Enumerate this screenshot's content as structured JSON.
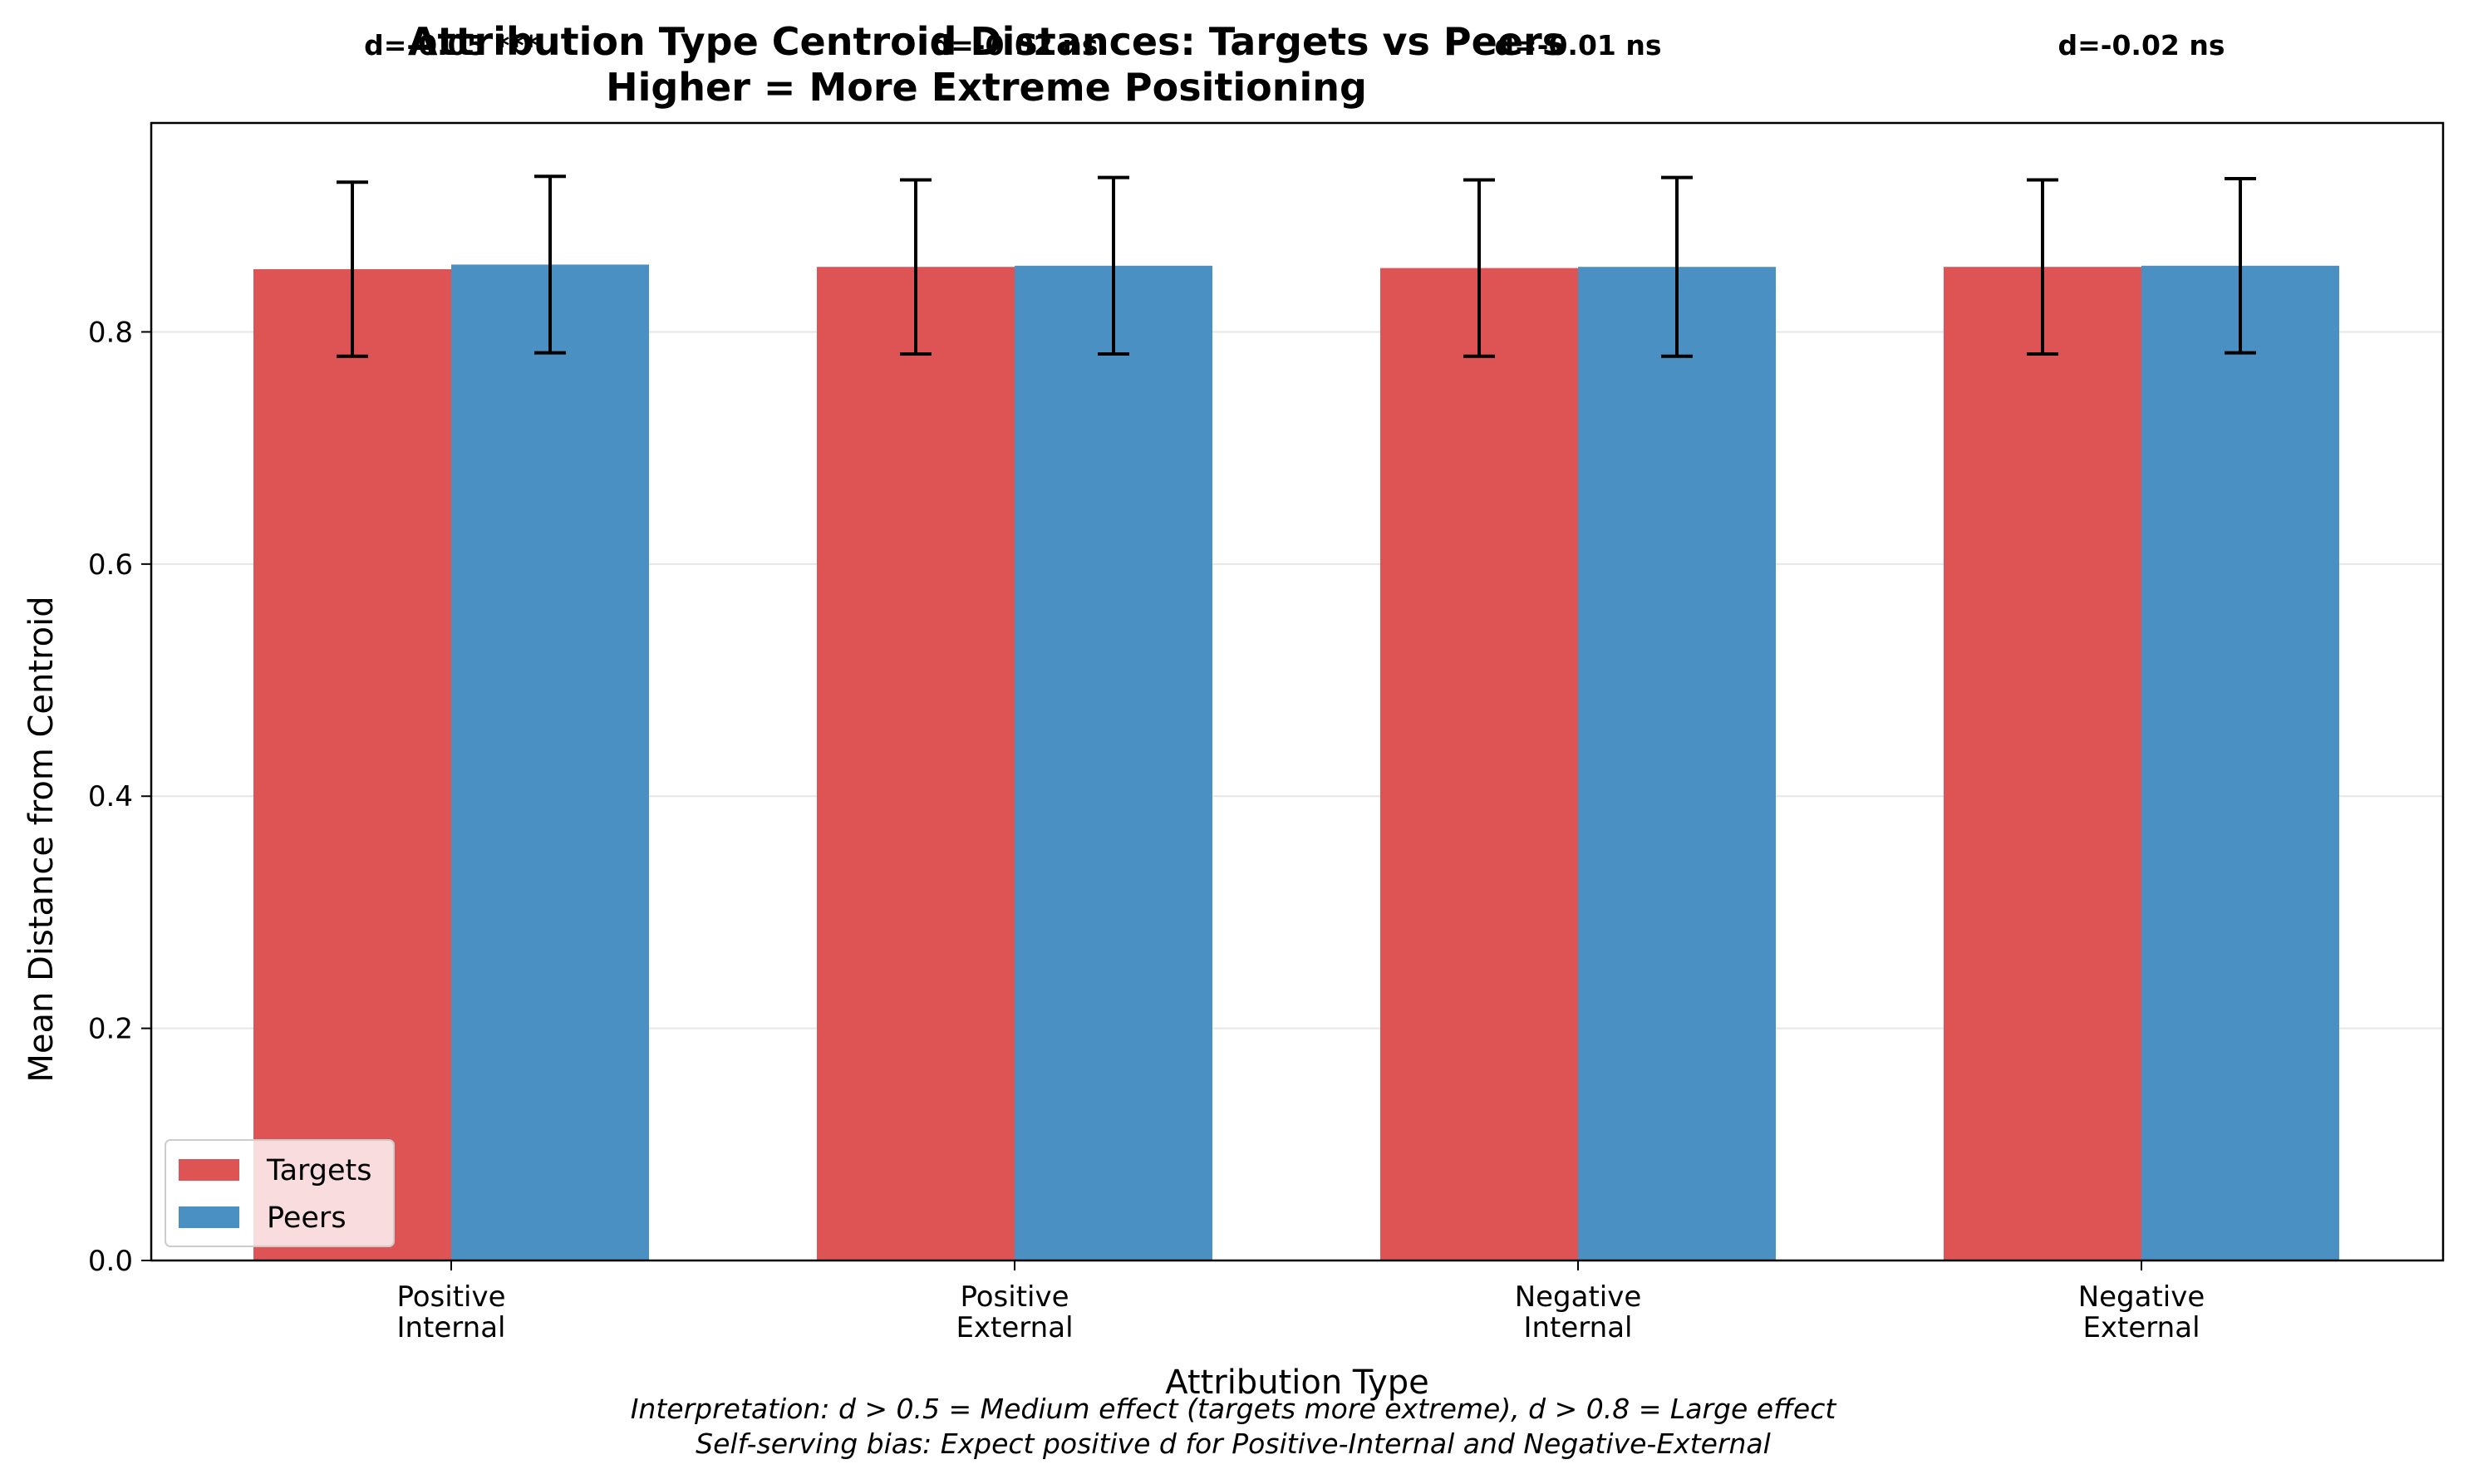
{
  "chart_data": {
    "type": "bar",
    "title": [
      "Attribution Type Centroid Distances: Targets vs Peers",
      "Higher = More Extreme Positioning"
    ],
    "xlabel": "Attribution Type",
    "ylabel": "Mean Distance from Centroid",
    "categories": [
      [
        "Positive",
        "Internal"
      ],
      [
        "Positive",
        "External"
      ],
      [
        "Negative",
        "Internal"
      ],
      [
        "Negative",
        "External"
      ]
    ],
    "series": [
      {
        "name": "Targets",
        "color": "#de5354",
        "values": [
          0.854,
          0.856,
          0.855,
          0.856
        ],
        "error": [
          0.075,
          0.075,
          0.076,
          0.075
        ]
      },
      {
        "name": "Peers",
        "color": "#4a90c2",
        "values": [
          0.858,
          0.857,
          0.856,
          0.857
        ],
        "error": [
          0.076,
          0.076,
          0.077,
          0.075
        ]
      }
    ],
    "annotations": [
      "d=-0.05 ***",
      "d=-0.02 ns",
      "d=-0.01 ns",
      "d=-0.02 ns"
    ],
    "ylim": [
      0,
      0.98
    ],
    "yticks": [
      0.0,
      0.2,
      0.4,
      0.6,
      0.8
    ],
    "grid": "y",
    "legend_position": "lower-left",
    "footnotes": [
      "Interpretation: d > 0.5 = Medium effect (targets more extreme), d > 0.8 = Large effect",
      "Self-serving bias: Expect positive d for Positive-Internal and Negative-External"
    ]
  }
}
